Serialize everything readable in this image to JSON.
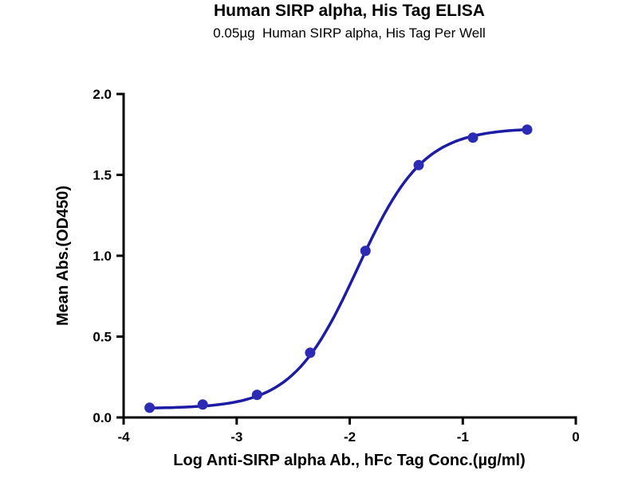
{
  "chart_data": {
    "type": "scatter",
    "title": "Human SIRP alpha, His Tag ELISA",
    "subtitle": "0.05µg  Human SIRP alpha, His Tag Per Well",
    "xlabel": "Log Anti-SIRP alpha Ab., hFc Tag Conc.(µg/ml)",
    "ylabel": "Mean Abs.(OD450)",
    "xlim": [
      -4,
      0
    ],
    "ylim": [
      0,
      2
    ],
    "xtick_labels": [
      "-4",
      "-3",
      "-2",
      "-1",
      "0"
    ],
    "xtick_values": [
      -4,
      -3,
      -2,
      -1,
      0
    ],
    "ytick_labels": [
      "0.0",
      "0.5",
      "1.0",
      "1.5",
      "2.0"
    ],
    "ytick_values": [
      0,
      0.5,
      1,
      1.5,
      2
    ],
    "grid": false,
    "legend": "none",
    "series": [
      {
        "name": "Anti-SIRP alpha Ab, hFc Tag",
        "x": [
          -3.77,
          -3.3,
          -2.82,
          -2.35,
          -1.86,
          -1.39,
          -0.91,
          -0.43
        ],
        "y": [
          0.06,
          0.08,
          0.14,
          0.4,
          1.03,
          1.56,
          1.73,
          1.78
        ]
      }
    ],
    "fit": {
      "model": "4PL",
      "bottom": 0.055,
      "top": 1.79,
      "logEC50": -1.93,
      "hill": 1.5
    },
    "colors": {
      "curve": "#1C1CA4",
      "marker": "#2B2BB5",
      "axis": "#000000",
      "text": "#000000",
      "background": "#ffffff"
    }
  }
}
